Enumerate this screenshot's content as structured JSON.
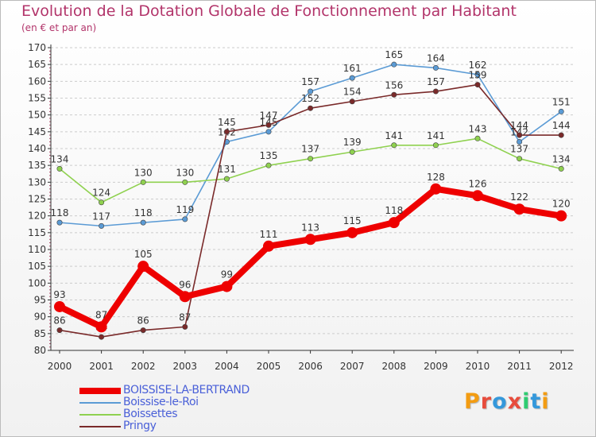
{
  "title": "Evolution de la Dotation Globale de Fonctionnement par Habitant",
  "subtitle": "(en € et par an)",
  "colors": {
    "title": "#b2346a",
    "axis": "#333333",
    "grid": "#cccccc",
    "legend_text": "#4a60d8"
  },
  "logo": {
    "letters": [
      {
        "char": "P",
        "color": "#f39c12"
      },
      {
        "char": "r",
        "color": "#e74c3c"
      },
      {
        "char": "o",
        "color": "#3498db"
      },
      {
        "char": "x",
        "color": "#e74c3c"
      },
      {
        "char": "i",
        "color": "#2ecc71"
      },
      {
        "char": "t",
        "color": "#3498db"
      },
      {
        "char": "i",
        "color": "#f39c12"
      }
    ]
  },
  "chart_data": {
    "type": "line",
    "title": "Evolution de la Dotation Globale de Fonctionnement par Habitant",
    "subtitle": "(en € et par an)",
    "x": [
      "2000",
      "2001",
      "2002",
      "2003",
      "2004",
      "2005",
      "2006",
      "2007",
      "2008",
      "2009",
      "2010",
      "2011",
      "2012"
    ],
    "ylim": [
      80,
      170
    ],
    "ytick_step": 5,
    "grid": "horizontal dashed",
    "legend_position": "bottom-left",
    "series": [
      {
        "name": "BOISSISE-LA-BERTRAND",
        "color": "#ee0000",
        "emphasis": true,
        "values": [
          93,
          87,
          105,
          96,
          99,
          111,
          113,
          115,
          118,
          128,
          126,
          122,
          120
        ]
      },
      {
        "name": "Boissise-le-Roi",
        "color": "#5b9bd5",
        "emphasis": false,
        "values": [
          118,
          117,
          118,
          119,
          142,
          145,
          157,
          161,
          165,
          164,
          162,
          142,
          151
        ]
      },
      {
        "name": "Boissettes",
        "color": "#8fd14f",
        "emphasis": false,
        "values": [
          134,
          124,
          130,
          130,
          131,
          135,
          137,
          139,
          141,
          141,
          143,
          137,
          134
        ]
      },
      {
        "name": "Pringy",
        "color": "#7a2a2a",
        "emphasis": false,
        "values": [
          86,
          84,
          86,
          87,
          145,
          147,
          152,
          154,
          156,
          157,
          159,
          144,
          144
        ]
      }
    ]
  }
}
